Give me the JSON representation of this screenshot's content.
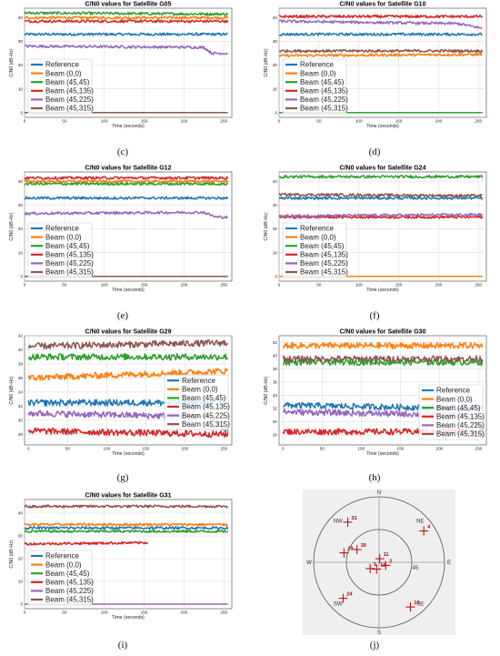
{
  "captions": [
    "(c)",
    "(d)",
    "(e)",
    "(f)",
    "(g)",
    "(h)",
    "(i)",
    "(j)"
  ],
  "colors": {
    "Reference": "#1f77b4",
    "Beam (0,0)": "#ff7f0e",
    "Beam (45,45)": "#2ca02c",
    "Beam (45,135)": "#d62728",
    "Beam (45,225)": "#9467bd",
    "Beam (45,315)": "#8c564b"
  },
  "chart_data": [
    {
      "type": "line",
      "title": "C/N0 values for Satellite G05",
      "xlabel": "Time (seconds)",
      "ylabel": "C/N0 (dB-Hz)",
      "xlim": [
        0,
        260
      ],
      "ylim": [
        -2,
        44
      ],
      "xticks": [
        0,
        50,
        100,
        150,
        200,
        250
      ],
      "yticks": [
        0,
        10,
        20,
        30,
        40
      ],
      "legend": "lower-left",
      "grid": true,
      "series": [
        {
          "name": "Reference",
          "values": [
            {
              "x": 0,
              "y": 33
            },
            {
              "x": 255,
              "y": 33
            }
          ]
        },
        {
          "name": "Beam (0,0)",
          "values": [
            {
              "x": 0,
              "y": 40
            },
            {
              "x": 255,
              "y": 40
            }
          ]
        },
        {
          "name": "Beam (45,45)",
          "values": [
            {
              "x": 0,
              "y": 42
            },
            {
              "x": 255,
              "y": 41.5
            }
          ]
        },
        {
          "name": "Beam (45,135)",
          "values": [
            {
              "x": 0,
              "y": 38.5
            },
            {
              "x": 255,
              "y": 38.5
            }
          ]
        },
        {
          "name": "Beam (45,225)",
          "values": [
            {
              "x": 0,
              "y": 28
            },
            {
              "x": 225,
              "y": 27.5
            },
            {
              "x": 235,
              "y": 25
            },
            {
              "x": 255,
              "y": 25
            }
          ]
        },
        {
          "name": "Beam (45,315)",
          "values": [
            {
              "x": 0,
              "y": 0
            },
            {
              "x": 255,
              "y": 0
            }
          ]
        }
      ]
    },
    {
      "type": "line",
      "title": "C/N0 values for Satellite G10",
      "xlabel": "Time (seconds)",
      "ylabel": "C/N0 (dB-Hz)",
      "xlim": [
        0,
        260
      ],
      "ylim": [
        -2,
        44
      ],
      "xticks": [
        0,
        50,
        100,
        150,
        200,
        250
      ],
      "yticks": [
        0,
        10,
        20,
        30,
        40
      ],
      "legend": "lower-left",
      "grid": true,
      "series": [
        {
          "name": "Reference",
          "values": [
            {
              "x": 0,
              "y": 33
            },
            {
              "x": 255,
              "y": 33
            }
          ]
        },
        {
          "name": "Beam (0,0)",
          "values": [
            {
              "x": 0,
              "y": 24
            },
            {
              "x": 255,
              "y": 24.5
            }
          ]
        },
        {
          "name": "Beam (45,45)",
          "values": [
            {
              "x": 0,
              "y": 0
            },
            {
              "x": 255,
              "y": 0
            }
          ]
        },
        {
          "name": "Beam (45,135)",
          "values": [
            {
              "x": 0,
              "y": 40.5
            },
            {
              "x": 255,
              "y": 40.5
            }
          ]
        },
        {
          "name": "Beam (45,225)",
          "values": [
            {
              "x": 0,
              "y": 38.5
            },
            {
              "x": 225,
              "y": 37.5
            },
            {
              "x": 255,
              "y": 35.5
            }
          ]
        },
        {
          "name": "Beam (45,315)",
          "values": [
            {
              "x": 0,
              "y": 26
            },
            {
              "x": 255,
              "y": 26
            }
          ]
        }
      ]
    },
    {
      "type": "line",
      "title": "C/N0 values for Satellite G12",
      "xlabel": "Time (seconds)",
      "ylabel": "C/N0 (dB-Hz)",
      "xlim": [
        0,
        260
      ],
      "ylim": [
        -2,
        44
      ],
      "xticks": [
        0,
        50,
        100,
        150,
        200,
        250
      ],
      "yticks": [
        0,
        10,
        20,
        30,
        40
      ],
      "legend": "lower-left",
      "grid": true,
      "series": [
        {
          "name": "Reference",
          "values": [
            {
              "x": 0,
              "y": 33
            },
            {
              "x": 255,
              "y": 33
            }
          ]
        },
        {
          "name": "Beam (0,0)",
          "values": [
            {
              "x": 0,
              "y": 40
            },
            {
              "x": 255,
              "y": 40
            }
          ]
        },
        {
          "name": "Beam (45,45)",
          "values": [
            {
              "x": 0,
              "y": 39
            },
            {
              "x": 255,
              "y": 39
            }
          ]
        },
        {
          "name": "Beam (45,135)",
          "values": [
            {
              "x": 0,
              "y": 41.5
            },
            {
              "x": 255,
              "y": 41.5
            }
          ]
        },
        {
          "name": "Beam (45,225)",
          "values": [
            {
              "x": 0,
              "y": 26.5
            },
            {
              "x": 225,
              "y": 27
            },
            {
              "x": 240,
              "y": 25
            },
            {
              "x": 255,
              "y": 25
            }
          ]
        },
        {
          "name": "Beam (45,315)",
          "values": [
            {
              "x": 0,
              "y": 0
            },
            {
              "x": 255,
              "y": 0
            }
          ]
        }
      ]
    },
    {
      "type": "line",
      "title": "C/N0 values for Satellite G24",
      "xlabel": "Time (seconds)",
      "ylabel": "C/N0 (dB-Hz)",
      "xlim": [
        0,
        260
      ],
      "ylim": [
        -2,
        44
      ],
      "xticks": [
        0,
        50,
        100,
        150,
        200,
        250
      ],
      "yticks": [
        0,
        10,
        20,
        30,
        40
      ],
      "legend": "lower-left",
      "grid": true,
      "series": [
        {
          "name": "Reference",
          "values": [
            {
              "x": 0,
              "y": 33
            },
            {
              "x": 255,
              "y": 33
            }
          ]
        },
        {
          "name": "Beam (0,0)",
          "values": [
            {
              "x": 0,
              "y": 0
            },
            {
              "x": 255,
              "y": 0
            }
          ]
        },
        {
          "name": "Beam (45,45)",
          "values": [
            {
              "x": 0,
              "y": 42
            },
            {
              "x": 255,
              "y": 42
            }
          ]
        },
        {
          "name": "Beam (45,135)",
          "values": [
            {
              "x": 0,
              "y": 25
            },
            {
              "x": 255,
              "y": 25
            }
          ]
        },
        {
          "name": "Beam (45,225)",
          "values": [
            {
              "x": 0,
              "y": 25.5
            },
            {
              "x": 255,
              "y": 26
            }
          ]
        },
        {
          "name": "Beam (45,315)",
          "values": [
            {
              "x": 0,
              "y": 34.5
            },
            {
              "x": 255,
              "y": 34
            }
          ]
        }
      ]
    },
    {
      "type": "line",
      "title": "C/N0 values for Satellite G29",
      "xlabel": "Time (seconds)",
      "ylabel": "C/N0 (dB-Hz)",
      "xlim": [
        -5,
        260
      ],
      "ylim": [
        26.5,
        42
      ],
      "xticks": [
        0,
        50,
        100,
        150,
        200,
        250
      ],
      "yticks": [
        28,
        30,
        32,
        34,
        36,
        38,
        40,
        42
      ],
      "legend": "center-right",
      "grid": true,
      "series": [
        {
          "name": "Reference",
          "values": [
            {
              "x": 0,
              "y": 32.5
            },
            {
              "x": 255,
              "y": 32.5
            }
          ]
        },
        {
          "name": "Beam (0,0)",
          "values": [
            {
              "x": 0,
              "y": 36
            },
            {
              "x": 255,
              "y": 37
            }
          ]
        },
        {
          "name": "Beam (45,45)",
          "values": [
            {
              "x": 0,
              "y": 39
            },
            {
              "x": 255,
              "y": 39
            }
          ]
        },
        {
          "name": "Beam (45,135)",
          "values": [
            {
              "x": 0,
              "y": 28.5
            },
            {
              "x": 255,
              "y": 28
            }
          ]
        },
        {
          "name": "Beam (45,225)",
          "values": [
            {
              "x": 0,
              "y": 31
            },
            {
              "x": 230,
              "y": 30.5
            },
            {
              "x": 245,
              "y": 29
            },
            {
              "x": 255,
              "y": 28.5
            }
          ]
        },
        {
          "name": "Beam (45,315)",
          "values": [
            {
              "x": 0,
              "y": 40.5
            },
            {
              "x": 255,
              "y": 41
            }
          ]
        }
      ]
    },
    {
      "type": "line",
      "title": "C/N0 values for Satellite G30",
      "xlabel": "Time (seconds)",
      "ylabel": "C/N0 (dB-Hz)",
      "xlim": [
        -5,
        260
      ],
      "ylim": [
        26.5,
        43
      ],
      "xticks": [
        0,
        50,
        100,
        150,
        200,
        250
      ],
      "yticks": [
        28,
        30,
        32,
        34,
        36,
        38,
        40,
        42
      ],
      "legend": "lower-right",
      "grid": true,
      "series": [
        {
          "name": "Reference",
          "values": [
            {
              "x": 0,
              "y": 32.5
            },
            {
              "x": 255,
              "y": 32
            }
          ]
        },
        {
          "name": "Beam (0,0)",
          "values": [
            {
              "x": 0,
              "y": 41.5
            },
            {
              "x": 255,
              "y": 41.5
            }
          ]
        },
        {
          "name": "Beam (45,45)",
          "values": [
            {
              "x": 0,
              "y": 39
            },
            {
              "x": 255,
              "y": 39
            }
          ]
        },
        {
          "name": "Beam (45,135)",
          "values": [
            {
              "x": 0,
              "y": 28.5
            },
            {
              "x": 255,
              "y": 28.5
            }
          ]
        },
        {
          "name": "Beam (45,225)",
          "values": [
            {
              "x": 0,
              "y": 31.5
            },
            {
              "x": 235,
              "y": 31
            },
            {
              "x": 255,
              "y": 29
            }
          ]
        },
        {
          "name": "Beam (45,315)",
          "values": [
            {
              "x": 0,
              "y": 39.5
            },
            {
              "x": 255,
              "y": 39.5
            }
          ]
        }
      ]
    },
    {
      "type": "line",
      "title": "C/N0 values for Satellite G31",
      "xlabel": "Time (seconds)",
      "ylabel": "C/N0 (dB-Hz)",
      "xlim": [
        0,
        260
      ],
      "ylim": [
        -2,
        46
      ],
      "xticks": [
        0,
        50,
        100,
        150,
        200,
        250
      ],
      "yticks": [
        0,
        10,
        20,
        30,
        40
      ],
      "legend": "lower-left",
      "grid": true,
      "series": [
        {
          "name": "Reference",
          "values": [
            {
              "x": 0,
              "y": 33.5
            },
            {
              "x": 255,
              "y": 33.5
            }
          ]
        },
        {
          "name": "Beam (0,0)",
          "values": [
            {
              "x": 0,
              "y": 35
            },
            {
              "x": 255,
              "y": 35
            }
          ]
        },
        {
          "name": "Beam (45,45)",
          "values": [
            {
              "x": 0,
              "y": 32
            },
            {
              "x": 255,
              "y": 32
            }
          ]
        },
        {
          "name": "Beam (45,135)",
          "values": [
            {
              "x": 0,
              "y": 26.5
            },
            {
              "x": 155,
              "y": 27
            }
          ]
        },
        {
          "name": "Beam (45,225)",
          "values": [
            {
              "x": 0,
              "y": 0
            },
            {
              "x": 255,
              "y": 0
            }
          ]
        },
        {
          "name": "Beam (45,315)",
          "values": [
            {
              "x": 0,
              "y": 43
            },
            {
              "x": 255,
              "y": 43
            }
          ]
        }
      ]
    }
  ],
  "skyplot": {
    "directions": [
      "N",
      "NE",
      "E",
      "SE",
      "S",
      "SW",
      "W",
      "NW"
    ],
    "ring_labels": [
      "45"
    ],
    "satellites": [
      {
        "label": "31",
        "azimuth": 322,
        "elevation": 20
      },
      {
        "label": "4",
        "azimuth": 55,
        "elevation": 15
      },
      {
        "label": "29",
        "azimuth": 285,
        "elevation": 40
      },
      {
        "label": "30",
        "azimuth": 300,
        "elevation": 55
      },
      {
        "label": "11",
        "azimuth": 10,
        "elevation": 85
      },
      {
        "label": "2",
        "azimuth": 115,
        "elevation": 80
      },
      {
        "label": "5",
        "azimuth": 235,
        "elevation": 75
      },
      {
        "label": "12",
        "azimuth": 200,
        "elevation": 80
      },
      {
        "label": "24",
        "azimuth": 225,
        "elevation": 20
      },
      {
        "label": "10",
        "azimuth": 145,
        "elevation": 15
      }
    ]
  }
}
